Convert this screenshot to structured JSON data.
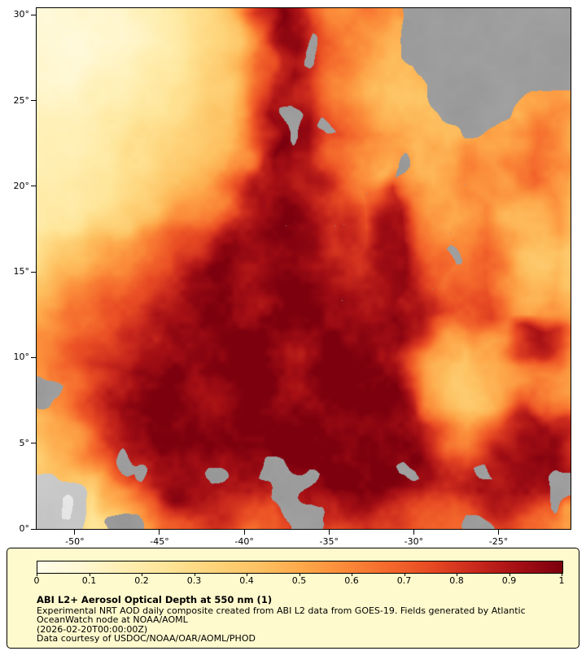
{
  "window": {
    "background": "#ffffff"
  },
  "legend": {
    "background": "#fffacd",
    "border_color": "#000000",
    "title": "ABI L2+ Aerosol Optical Depth at 550 nm (1)",
    "line1": "Experimental NRT AOD daily composite created from ABI L2 data from GOES-19. Fields generated by Atlantic",
    "line2": "OceanWatch node at NOAA/AOML",
    "line3": "(2026-02-20T00:00:00Z)",
    "line4": "Data courtesy of USDOC/NOAA/OAR/AOML/PHOD"
  },
  "chart_data": {
    "type": "heatmap",
    "title": "ABI L2+ Aerosol Optical Depth at 550 nm (1)",
    "lon_range": [
      -52.25,
      -20.75
    ],
    "lat_range": [
      0,
      30.4
    ],
    "lat_tick_values": [
      30,
      25,
      20,
      15,
      10,
      5,
      0
    ],
    "lat_tick_labels": [
      "30°",
      "25°",
      "20°",
      "15°",
      "10°",
      "5°",
      "0°"
    ],
    "lon_tick_values": [
      -50,
      -45,
      -40,
      -35,
      -30,
      -25
    ],
    "lon_tick_labels": [
      "-50°",
      "-45°",
      "-40°",
      "-35°",
      "-30°",
      "-25°"
    ],
    "colorbar_tick_values": [
      0,
      0.1,
      0.2,
      0.3,
      0.4,
      0.5,
      0.6,
      0.7,
      0.8,
      0.9,
      1
    ],
    "colorbar_tick_labels": [
      "0",
      "0.1",
      "0.2",
      "0.3",
      "0.4",
      "0.5",
      "0.6",
      "0.7",
      "0.8",
      "0.9",
      "1"
    ],
    "colormap_stops": [
      [
        0,
        "#fffdea"
      ],
      [
        0.08,
        "#fff8d5"
      ],
      [
        0.16,
        "#ffefb3"
      ],
      [
        0.25,
        "#fee496"
      ],
      [
        0.33,
        "#fed47b"
      ],
      [
        0.42,
        "#fdc263"
      ],
      [
        0.5,
        "#fda94b"
      ],
      [
        0.58,
        "#fb8c3a"
      ],
      [
        0.67,
        "#f4682c"
      ],
      [
        0.75,
        "#e74a23"
      ],
      [
        0.83,
        "#cb2a1d"
      ],
      [
        0.92,
        "#a30e14"
      ],
      [
        1,
        "#7c000e"
      ]
    ],
    "no_data_color": "#9c9c9c",
    "land_color": "#c6c6c6",
    "special_values": {
      "-1": "no data / cloud (gray)",
      "-2": "land (light gray)"
    },
    "grid_shape": [
      30,
      32
    ],
    "aod_grid": [
      [
        0.1,
        0.1,
        0.1,
        0.1,
        0.12,
        0.12,
        0.15,
        0.18,
        0.22,
        0.28,
        0.33,
        0.4,
        0.55,
        0.8,
        0.92,
        0.85,
        0.7,
        0.62,
        0.58,
        0.62,
        0.6,
        0.55,
        -1,
        -1,
        -1,
        -1,
        -1,
        -1,
        -1,
        -1,
        -1,
        -1
      ],
      [
        0.08,
        0.08,
        0.1,
        0.1,
        0.1,
        0.12,
        0.14,
        0.17,
        0.2,
        0.26,
        0.3,
        0.36,
        0.48,
        0.72,
        0.95,
        0.9,
        0.75,
        0.65,
        0.6,
        0.58,
        0.55,
        0.5,
        -1,
        -1,
        -1,
        -1,
        -1,
        -1,
        -1,
        -1,
        -1,
        -1
      ],
      [
        0.08,
        0.08,
        0.08,
        0.1,
        0.1,
        0.12,
        0.14,
        0.16,
        0.2,
        0.24,
        0.28,
        0.33,
        0.42,
        0.6,
        0.88,
        0.95,
        -1,
        0.7,
        0.6,
        0.55,
        0.52,
        0.48,
        -1,
        -1,
        -1,
        -1,
        -1,
        -1,
        -1,
        -1,
        -1,
        -1
      ],
      [
        0.08,
        0.08,
        0.08,
        0.1,
        0.12,
        0.14,
        0.16,
        0.18,
        0.22,
        0.26,
        0.3,
        0.35,
        0.45,
        0.62,
        0.85,
        0.92,
        -1,
        0.72,
        0.62,
        0.55,
        0.5,
        0.45,
        -1,
        -1,
        -1,
        -1,
        -1,
        -1,
        -1,
        -1,
        -1,
        -1
      ],
      [
        0.1,
        0.1,
        0.1,
        0.12,
        0.14,
        0.16,
        0.18,
        0.2,
        0.24,
        0.28,
        0.32,
        0.38,
        0.5,
        0.68,
        0.88,
        0.95,
        0.85,
        0.7,
        0.6,
        0.52,
        0.48,
        0.45,
        0.42,
        -1,
        -1,
        -1,
        -1,
        -1,
        -1,
        -1,
        -1,
        -1
      ],
      [
        0.12,
        0.12,
        0.12,
        0.14,
        0.16,
        0.18,
        0.2,
        0.22,
        0.26,
        0.3,
        0.34,
        0.4,
        0.52,
        0.72,
        0.9,
        0.95,
        0.88,
        0.72,
        0.6,
        0.52,
        0.46,
        0.42,
        0.4,
        -1,
        -1,
        -1,
        -1,
        -1,
        -1,
        0.5,
        0.55,
        0.5
      ],
      [
        0.15,
        0.14,
        0.14,
        0.16,
        0.18,
        0.2,
        0.22,
        0.25,
        0.28,
        0.32,
        0.36,
        0.42,
        0.55,
        0.78,
        0.92,
        -1,
        0.88,
        0.75,
        0.62,
        0.55,
        0.48,
        0.44,
        0.42,
        0.4,
        -1,
        -1,
        -1,
        -1,
        0.45,
        0.55,
        0.6,
        0.55
      ],
      [
        0.15,
        0.15,
        0.15,
        0.16,
        0.18,
        0.2,
        0.24,
        0.28,
        0.3,
        0.34,
        0.38,
        0.45,
        0.58,
        0.8,
        0.95,
        -1,
        0.9,
        -1,
        0.65,
        0.58,
        0.52,
        0.46,
        0.44,
        0.42,
        0.45,
        -1,
        -1,
        0.5,
        0.55,
        0.6,
        0.55,
        0.5
      ],
      [
        0.15,
        0.15,
        0.16,
        0.18,
        0.2,
        0.22,
        0.26,
        0.3,
        0.33,
        0.36,
        0.4,
        0.48,
        0.62,
        0.85,
        0.95,
        0.9,
        0.85,
        0.7,
        0.62,
        0.55,
        0.5,
        0.46,
        0.44,
        0.46,
        0.5,
        0.55,
        0.52,
        0.5,
        0.55,
        0.62,
        0.58,
        0.52
      ],
      [
        0.16,
        0.16,
        0.18,
        0.2,
        0.22,
        0.25,
        0.28,
        0.32,
        0.35,
        0.38,
        0.44,
        0.52,
        0.68,
        0.88,
        0.95,
        0.92,
        0.88,
        0.75,
        0.65,
        0.58,
        0.52,
        -1,
        0.46,
        0.48,
        0.52,
        0.58,
        0.55,
        0.52,
        0.58,
        0.65,
        0.6,
        0.55
      ],
      [
        0.18,
        0.18,
        0.2,
        0.22,
        0.25,
        0.28,
        0.32,
        0.36,
        0.4,
        0.45,
        0.52,
        0.62,
        0.75,
        0.9,
        0.95,
        0.92,
        0.88,
        0.8,
        0.7,
        0.62,
        0.72,
        0.85,
        0.6,
        0.5,
        0.52,
        0.56,
        0.52,
        0.5,
        0.55,
        0.65,
        0.6,
        0.5
      ],
      [
        0.2,
        0.2,
        0.22,
        0.25,
        0.28,
        0.32,
        0.36,
        0.4,
        0.45,
        0.52,
        0.62,
        0.75,
        0.88,
        0.95,
        0.97,
        0.95,
        0.9,
        0.85,
        0.75,
        0.68,
        0.8,
        0.9,
        0.65,
        0.55,
        0.5,
        0.55,
        0.6,
        0.52,
        0.48,
        0.52,
        0.58,
        0.48
      ],
      [
        0.22,
        0.24,
        0.26,
        0.3,
        0.34,
        0.38,
        0.42,
        0.48,
        0.55,
        0.62,
        0.72,
        0.85,
        0.95,
        0.97,
        0.97,
        0.95,
        0.92,
        0.88,
        0.8,
        0.72,
        0.85,
        0.92,
        0.7,
        0.58,
        0.52,
        0.58,
        0.65,
        0.55,
        0.45,
        0.48,
        0.52,
        0.45
      ],
      [
        0.3,
        0.34,
        0.38,
        0.42,
        0.46,
        0.52,
        0.58,
        0.64,
        0.7,
        0.78,
        0.86,
        0.93,
        0.97,
        0.97,
        0.97,
        0.95,
        0.93,
        0.9,
        0.85,
        0.78,
        0.88,
        0.95,
        0.75,
        0.62,
        0.55,
        0.6,
        0.68,
        0.58,
        0.48,
        0.45,
        0.48,
        0.42
      ],
      [
        0.34,
        0.38,
        0.44,
        0.48,
        0.54,
        0.6,
        0.66,
        0.72,
        0.78,
        0.85,
        0.91,
        0.95,
        0.97,
        0.97,
        0.97,
        0.95,
        0.93,
        0.9,
        0.88,
        0.82,
        0.9,
        0.95,
        0.8,
        0.65,
        -1,
        0.62,
        0.7,
        0.6,
        0.5,
        0.42,
        0.45,
        0.4
      ],
      [
        0.38,
        0.44,
        0.5,
        0.55,
        0.6,
        0.66,
        0.72,
        0.78,
        0.85,
        0.9,
        0.95,
        0.97,
        0.97,
        0.97,
        0.97,
        0.95,
        0.93,
        0.92,
        0.9,
        0.88,
        0.92,
        0.95,
        0.85,
        0.7,
        0.6,
        0.65,
        0.72,
        0.62,
        0.52,
        0.45,
        0.48,
        0.42
      ],
      [
        0.42,
        0.48,
        0.55,
        0.6,
        0.65,
        0.72,
        0.78,
        0.84,
        0.88,
        0.93,
        0.96,
        0.97,
        0.97,
        0.97,
        0.97,
        0.96,
        0.94,
        0.93,
        0.92,
        0.9,
        0.93,
        0.96,
        0.88,
        0.75,
        0.65,
        0.7,
        0.75,
        0.65,
        0.55,
        0.48,
        0.5,
        0.45
      ],
      [
        0.48,
        0.55,
        0.62,
        0.66,
        0.72,
        0.78,
        0.84,
        0.88,
        0.92,
        0.94,
        0.96,
        0.97,
        0.97,
        0.97,
        0.97,
        0.96,
        0.95,
        0.94,
        0.93,
        0.92,
        0.94,
        0.96,
        0.9,
        0.78,
        0.68,
        0.72,
        0.78,
        0.68,
        0.58,
        0.52,
        0.55,
        0.5
      ],
      [
        0.52,
        0.58,
        0.65,
        0.7,
        0.76,
        0.82,
        0.86,
        0.9,
        0.93,
        0.95,
        0.97,
        0.97,
        0.97,
        0.97,
        0.97,
        0.97,
        0.96,
        0.95,
        0.94,
        0.93,
        0.95,
        0.96,
        0.85,
        0.7,
        0.6,
        0.55,
        0.6,
        0.65,
        0.8,
        0.88,
        0.8,
        0.6
      ],
      [
        0.55,
        0.62,
        0.7,
        0.74,
        0.8,
        0.85,
        0.88,
        0.92,
        0.94,
        0.96,
        0.97,
        0.97,
        0.97,
        0.97,
        0.97,
        0.97,
        0.96,
        0.96,
        0.95,
        0.94,
        0.95,
        0.97,
        0.8,
        0.6,
        0.5,
        0.45,
        0.5,
        0.6,
        0.78,
        0.85,
        0.75,
        0.55
      ],
      [
        0.55,
        0.6,
        0.68,
        0.78,
        0.85,
        0.9,
        0.93,
        0.95,
        0.97,
        0.97,
        0.97,
        0.97,
        0.97,
        0.97,
        0.97,
        0.97,
        0.97,
        0.96,
        0.96,
        0.95,
        0.96,
        0.9,
        0.7,
        0.5,
        0.42,
        0.4,
        0.45,
        0.5,
        0.6,
        0.7,
        0.65,
        0.5
      ],
      [
        -1,
        -1,
        0.6,
        0.72,
        0.82,
        0.88,
        0.92,
        0.95,
        0.97,
        0.97,
        0.97,
        0.97,
        0.97,
        0.97,
        0.97,
        0.97,
        0.97,
        0.97,
        0.96,
        0.96,
        0.96,
        0.92,
        0.75,
        0.52,
        0.42,
        0.38,
        0.42,
        0.48,
        0.55,
        0.62,
        0.58,
        0.48
      ],
      [
        -1,
        0.55,
        0.62,
        0.75,
        0.85,
        0.9,
        0.94,
        0.96,
        0.97,
        0.97,
        0.97,
        0.97,
        0.97,
        0.97,
        0.97,
        0.97,
        0.97,
        0.97,
        0.97,
        0.96,
        0.96,
        0.94,
        0.8,
        0.55,
        0.45,
        0.4,
        0.45,
        0.55,
        0.65,
        0.72,
        0.68,
        0.55
      ],
      [
        0.45,
        0.52,
        0.6,
        0.72,
        0.82,
        0.9,
        0.94,
        0.96,
        0.97,
        0.97,
        0.97,
        0.97,
        0.97,
        0.97,
        0.97,
        0.97,
        0.97,
        0.97,
        0.97,
        0.97,
        0.96,
        0.95,
        0.88,
        0.7,
        0.55,
        0.5,
        0.6,
        0.75,
        0.85,
        0.9,
        0.85,
        0.7
      ],
      [
        0.4,
        0.48,
        0.55,
        0.65,
        0.78,
        0.88,
        0.93,
        0.96,
        0.97,
        0.97,
        0.97,
        0.97,
        0.97,
        0.97,
        0.97,
        0.97,
        0.97,
        0.97,
        0.97,
        0.97,
        0.97,
        0.96,
        0.92,
        0.8,
        0.65,
        0.6,
        0.72,
        0.85,
        0.92,
        0.95,
        0.9,
        0.8
      ],
      [
        0.35,
        0.4,
        0.48,
        0.58,
        0.7,
        -1,
        0.9,
        0.95,
        0.97,
        0.97,
        0.97,
        0.97,
        0.97,
        0.97,
        0.97,
        0.97,
        0.97,
        0.97,
        0.97,
        0.97,
        0.97,
        0.96,
        0.94,
        0.88,
        0.78,
        0.72,
        0.82,
        0.9,
        0.95,
        0.95,
        0.92,
        0.85
      ],
      [
        -2,
        -2,
        0.4,
        0.5,
        0.62,
        0.75,
        -1,
        0.92,
        0.97,
        0.97,
        -1,
        -1,
        0.95,
        -1,
        -1,
        -1,
        -1,
        0.95,
        0.97,
        0.97,
        0.97,
        -1,
        -1,
        0.9,
        0.82,
        0.78,
        -1,
        0.88,
        0.95,
        0.92,
        -1,
        -1
      ],
      [
        -2,
        -2,
        -2,
        0.3,
        0.45,
        0.6,
        0.75,
        0.88,
        0.95,
        0.97,
        0.97,
        0.95,
        0.92,
        0.9,
        -1,
        -1,
        0.92,
        0.95,
        0.97,
        0.97,
        0.95,
        0.92,
        0.88,
        0.85,
        0.8,
        0.85,
        0.9,
        0.92,
        0.9,
        0.88,
        -1,
        -1
      ],
      [
        -2,
        -2,
        -2,
        0.28,
        0.4,
        0.5,
        0.6,
        0.7,
        0.8,
        0.85,
        0.88,
        0.85,
        0.8,
        0.75,
        0.72,
        -1,
        -1,
        0.85,
        0.88,
        0.9,
        0.88,
        0.85,
        0.8,
        0.75,
        0.7,
        0.75,
        0.8,
        0.85,
        0.8,
        0.75,
        -1,
        0.55
      ],
      [
        -2,
        -2,
        -2,
        0.25,
        -1,
        -1,
        -1,
        0.55,
        0.7,
        0.78,
        0.82,
        0.78,
        0.72,
        0.68,
        0.7,
        -1,
        -1,
        0.75,
        0.8,
        0.85,
        0.82,
        0.8,
        0.75,
        0.72,
        0.68,
        -1,
        -1,
        0.75,
        0.72,
        0.68,
        0.62,
        0.55
      ]
    ]
  }
}
